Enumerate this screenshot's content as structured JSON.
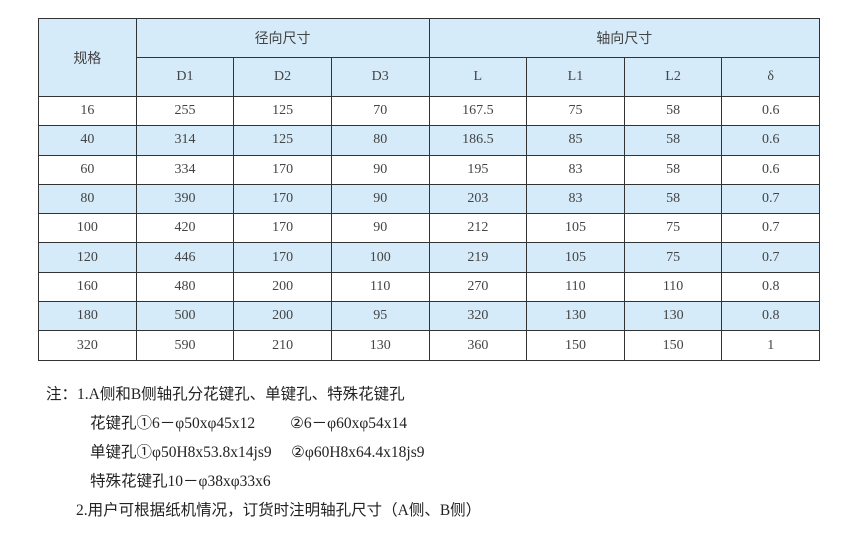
{
  "table": {
    "header_spec": "规格",
    "group_radial": "径向尺寸",
    "group_axial": "轴向尺寸",
    "columns": [
      "D1",
      "D2",
      "D3",
      "L",
      "L1",
      "L2",
      "δ"
    ],
    "rows": [
      [
        "16",
        "255",
        "125",
        "70",
        "167.5",
        "75",
        "58",
        "0.6"
      ],
      [
        "40",
        "314",
        "125",
        "80",
        "186.5",
        "85",
        "58",
        "0.6"
      ],
      [
        "60",
        "334",
        "170",
        "90",
        "195",
        "83",
        "58",
        "0.6"
      ],
      [
        "80",
        "390",
        "170",
        "90",
        "203",
        "83",
        "58",
        "0.7"
      ],
      [
        "100",
        "420",
        "170",
        "90",
        "212",
        "105",
        "75",
        "0.7"
      ],
      [
        "120",
        "446",
        "170",
        "100",
        "219",
        "105",
        "75",
        "0.7"
      ],
      [
        "160",
        "480",
        "200",
        "110",
        "270",
        "110",
        "110",
        "0.8"
      ],
      [
        "180",
        "500",
        "200",
        "95",
        "320",
        "130",
        "130",
        "0.8"
      ],
      [
        "320",
        "590",
        "210",
        "130",
        "360",
        "150",
        "150",
        "1"
      ]
    ]
  },
  "notes": {
    "line1": "注：1.A侧和B侧轴孔分花键孔、单键孔、特殊花键孔",
    "line2": "花键孔①6－φ50xφ45x12         ②6－φ60xφ54x14",
    "line3": "单键孔①φ50H8x53.8x14js9     ②φ60H8x64.4x18js9",
    "line4": "特殊花键孔10－φ38xφ33x6",
    "line5": "2.用户可根据纸机情况，订货时注明轴孔尺寸（A侧、B侧）"
  }
}
